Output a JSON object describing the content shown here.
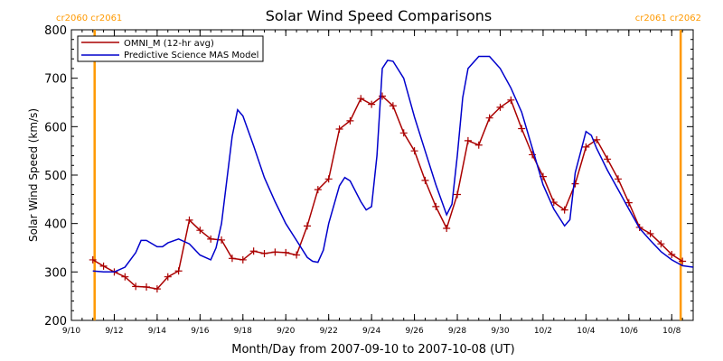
{
  "chart_data": {
    "type": "line",
    "title": "Solar Wind Speed Comparisons",
    "xlabel": "Month/Day from 2007-09-10 to 2007-10-08 (UT)",
    "ylabel": "Solar Wind Speed (km/s)",
    "ylim": [
      200,
      800
    ],
    "yticks": [
      200,
      300,
      400,
      500,
      600,
      700,
      800
    ],
    "xlim": [
      "2007-09-10T00:00",
      "2007-10-09T00:00"
    ],
    "x_ticks": [
      {
        "x": "2007-09-10T00:00",
        "label": "9/10"
      },
      {
        "x": "2007-09-12T00:00",
        "label": "9/12"
      },
      {
        "x": "2007-09-14T00:00",
        "label": "9/14"
      },
      {
        "x": "2007-09-16T00:00",
        "label": "9/16"
      },
      {
        "x": "2007-09-18T00:00",
        "label": "9/18"
      },
      {
        "x": "2007-09-20T00:00",
        "label": "9/20"
      },
      {
        "x": "2007-09-22T00:00",
        "label": "9/22"
      },
      {
        "x": "2007-09-24T00:00",
        "label": "9/24"
      },
      {
        "x": "2007-09-26T00:00",
        "label": "9/26"
      },
      {
        "x": "2007-09-28T00:00",
        "label": "9/28"
      },
      {
        "x": "2007-09-30T00:00",
        "label": "9/30"
      },
      {
        "x": "2007-10-02T00:00",
        "label": "10/2"
      },
      {
        "x": "2007-10-04T00:00",
        "label": "10/4"
      },
      {
        "x": "2007-10-06T00:00",
        "label": "10/6"
      },
      {
        "x": "2007-10-08T00:00",
        "label": "10/8"
      }
    ],
    "legend_position": "top-left",
    "series": [
      {
        "name": "OMNI_M (12-hr avg)",
        "color": "#aa0000",
        "marker": "plus",
        "points": [
          {
            "x": "2007-09-11T00:00",
            "y": 325
          },
          {
            "x": "2007-09-11T12:00",
            "y": 312
          },
          {
            "x": "2007-09-12T00:00",
            "y": 300
          },
          {
            "x": "2007-09-12T12:00",
            "y": 290
          },
          {
            "x": "2007-09-13T00:00",
            "y": 270
          },
          {
            "x": "2007-09-13T12:00",
            "y": 269
          },
          {
            "x": "2007-09-14T00:00",
            "y": 265
          },
          {
            "x": "2007-09-14T12:00",
            "y": 290
          },
          {
            "x": "2007-09-15T00:00",
            "y": 302
          },
          {
            "x": "2007-09-15T12:00",
            "y": 407
          },
          {
            "x": "2007-09-16T00:00",
            "y": 386
          },
          {
            "x": "2007-09-16T12:00",
            "y": 368
          },
          {
            "x": "2007-09-17T00:00",
            "y": 366
          },
          {
            "x": "2007-09-17T12:00",
            "y": 328
          },
          {
            "x": "2007-09-18T00:00",
            "y": 325
          },
          {
            "x": "2007-09-18T12:00",
            "y": 343
          },
          {
            "x": "2007-09-19T00:00",
            "y": 338
          },
          {
            "x": "2007-09-19T12:00",
            "y": 341
          },
          {
            "x": "2007-09-20T00:00",
            "y": 340
          },
          {
            "x": "2007-09-20T12:00",
            "y": 335
          },
          {
            "x": "2007-09-21T00:00",
            "y": 395
          },
          {
            "x": "2007-09-21T12:00",
            "y": 470
          },
          {
            "x": "2007-09-22T00:00",
            "y": 492
          },
          {
            "x": "2007-09-22T12:00",
            "y": 595
          },
          {
            "x": "2007-09-23T00:00",
            "y": 612
          },
          {
            "x": "2007-09-23T12:00",
            "y": 658
          },
          {
            "x": "2007-09-24T00:00",
            "y": 646
          },
          {
            "x": "2007-09-24T12:00",
            "y": 663
          },
          {
            "x": "2007-09-25T00:00",
            "y": 643
          },
          {
            "x": "2007-09-25T12:00",
            "y": 587
          },
          {
            "x": "2007-09-26T00:00",
            "y": 550
          },
          {
            "x": "2007-09-26T12:00",
            "y": 489
          },
          {
            "x": "2007-09-27T00:00",
            "y": 435
          },
          {
            "x": "2007-09-27T12:00",
            "y": 390
          },
          {
            "x": "2007-09-28T00:00",
            "y": 460
          },
          {
            "x": "2007-09-28T12:00",
            "y": 571
          },
          {
            "x": "2007-09-29T00:00",
            "y": 562
          },
          {
            "x": "2007-09-29T12:00",
            "y": 618
          },
          {
            "x": "2007-09-30T00:00",
            "y": 640
          },
          {
            "x": "2007-09-30T12:00",
            "y": 655
          },
          {
            "x": "2007-10-01T00:00",
            "y": 596
          },
          {
            "x": "2007-10-01T12:00",
            "y": 542
          },
          {
            "x": "2007-10-02T00:00",
            "y": 497
          },
          {
            "x": "2007-10-02T12:00",
            "y": 444
          },
          {
            "x": "2007-10-03T00:00",
            "y": 428
          },
          {
            "x": "2007-10-03T12:00",
            "y": 482
          },
          {
            "x": "2007-10-04T00:00",
            "y": 558
          },
          {
            "x": "2007-10-04T12:00",
            "y": 573
          },
          {
            "x": "2007-10-05T00:00",
            "y": 533
          },
          {
            "x": "2007-10-05T12:00",
            "y": 492
          },
          {
            "x": "2007-10-06T00:00",
            "y": 443
          },
          {
            "x": "2007-10-06T12:00",
            "y": 392
          },
          {
            "x": "2007-10-07T00:00",
            "y": 379
          },
          {
            "x": "2007-10-07T12:00",
            "y": 358
          },
          {
            "x": "2007-10-08T00:00",
            "y": 336
          },
          {
            "x": "2007-10-08T12:00",
            "y": 322
          }
        ]
      },
      {
        "name": "Predictive Science MAS Model",
        "color": "#0000cc",
        "marker": "none",
        "points": [
          {
            "x": "2007-09-11T00:00",
            "y": 302
          },
          {
            "x": "2007-09-11T12:00",
            "y": 300
          },
          {
            "x": "2007-09-12T00:00",
            "y": 300
          },
          {
            "x": "2007-09-12T12:00",
            "y": 310
          },
          {
            "x": "2007-09-13T00:00",
            "y": 340
          },
          {
            "x": "2007-09-13T06:00",
            "y": 365
          },
          {
            "x": "2007-09-13T12:00",
            "y": 365
          },
          {
            "x": "2007-09-14T00:00",
            "y": 352
          },
          {
            "x": "2007-09-14T06:00",
            "y": 352
          },
          {
            "x": "2007-09-14T12:00",
            "y": 360
          },
          {
            "x": "2007-09-15T00:00",
            "y": 368
          },
          {
            "x": "2007-09-15T12:00",
            "y": 358
          },
          {
            "x": "2007-09-16T00:00",
            "y": 335
          },
          {
            "x": "2007-09-16T12:00",
            "y": 325
          },
          {
            "x": "2007-09-16T18:00",
            "y": 350
          },
          {
            "x": "2007-09-17T00:00",
            "y": 400
          },
          {
            "x": "2007-09-17T12:00",
            "y": 580
          },
          {
            "x": "2007-09-17T18:00",
            "y": 635
          },
          {
            "x": "2007-09-18T00:00",
            "y": 622
          },
          {
            "x": "2007-09-18T12:00",
            "y": 560
          },
          {
            "x": "2007-09-19T00:00",
            "y": 495
          },
          {
            "x": "2007-09-19T12:00",
            "y": 445
          },
          {
            "x": "2007-09-20T00:00",
            "y": 400
          },
          {
            "x": "2007-09-20T12:00",
            "y": 365
          },
          {
            "x": "2007-09-21T00:00",
            "y": 330
          },
          {
            "x": "2007-09-21T06:00",
            "y": 322
          },
          {
            "x": "2007-09-21T12:00",
            "y": 320
          },
          {
            "x": "2007-09-21T18:00",
            "y": 345
          },
          {
            "x": "2007-09-22T00:00",
            "y": 400
          },
          {
            "x": "2007-09-22T12:00",
            "y": 478
          },
          {
            "x": "2007-09-22T18:00",
            "y": 495
          },
          {
            "x": "2007-09-23T00:00",
            "y": 488
          },
          {
            "x": "2007-09-23T12:00",
            "y": 445
          },
          {
            "x": "2007-09-23T18:00",
            "y": 428
          },
          {
            "x": "2007-09-24T00:00",
            "y": 435
          },
          {
            "x": "2007-09-24T06:00",
            "y": 540
          },
          {
            "x": "2007-09-24T12:00",
            "y": 720
          },
          {
            "x": "2007-09-24T18:00",
            "y": 737
          },
          {
            "x": "2007-09-25T00:00",
            "y": 735
          },
          {
            "x": "2007-09-25T12:00",
            "y": 700
          },
          {
            "x": "2007-09-26T00:00",
            "y": 620
          },
          {
            "x": "2007-09-26T12:00",
            "y": 550
          },
          {
            "x": "2007-09-27T00:00",
            "y": 480
          },
          {
            "x": "2007-09-27T12:00",
            "y": 418
          },
          {
            "x": "2007-09-27T18:00",
            "y": 440
          },
          {
            "x": "2007-09-28T00:00",
            "y": 540
          },
          {
            "x": "2007-09-28T06:00",
            "y": 660
          },
          {
            "x": "2007-09-28T12:00",
            "y": 720
          },
          {
            "x": "2007-09-29T00:00",
            "y": 745
          },
          {
            "x": "2007-09-29T12:00",
            "y": 745
          },
          {
            "x": "2007-09-30T00:00",
            "y": 720
          },
          {
            "x": "2007-09-30T12:00",
            "y": 680
          },
          {
            "x": "2007-10-01T00:00",
            "y": 630
          },
          {
            "x": "2007-10-01T12:00",
            "y": 555
          },
          {
            "x": "2007-10-02T00:00",
            "y": 480
          },
          {
            "x": "2007-10-02T12:00",
            "y": 430
          },
          {
            "x": "2007-10-03T00:00",
            "y": 395
          },
          {
            "x": "2007-10-03T06:00",
            "y": 408
          },
          {
            "x": "2007-10-03T12:00",
            "y": 505
          },
          {
            "x": "2007-10-04T00:00",
            "y": 590
          },
          {
            "x": "2007-10-04T06:00",
            "y": 582
          },
          {
            "x": "2007-10-04T12:00",
            "y": 555
          },
          {
            "x": "2007-10-05T00:00",
            "y": 510
          },
          {
            "x": "2007-10-05T12:00",
            "y": 470
          },
          {
            "x": "2007-10-06T00:00",
            "y": 430
          },
          {
            "x": "2007-10-06T12:00",
            "y": 390
          },
          {
            "x": "2007-10-07T00:00",
            "y": 365
          },
          {
            "x": "2007-10-07T12:00",
            "y": 342
          },
          {
            "x": "2007-10-08T00:00",
            "y": 325
          },
          {
            "x": "2007-10-08T12:00",
            "y": 313
          },
          {
            "x": "2007-10-09T00:00",
            "y": 310
          }
        ]
      }
    ],
    "carrington_markers": [
      {
        "x": "2007-09-11T02:00",
        "color": "#ff9900",
        "label": "cr2060 cr2061",
        "label_side": "left"
      },
      {
        "x": "2007-10-08T10:00",
        "color": "#ff9900",
        "label": "cr2061 cr2062",
        "label_side": "right"
      }
    ]
  }
}
